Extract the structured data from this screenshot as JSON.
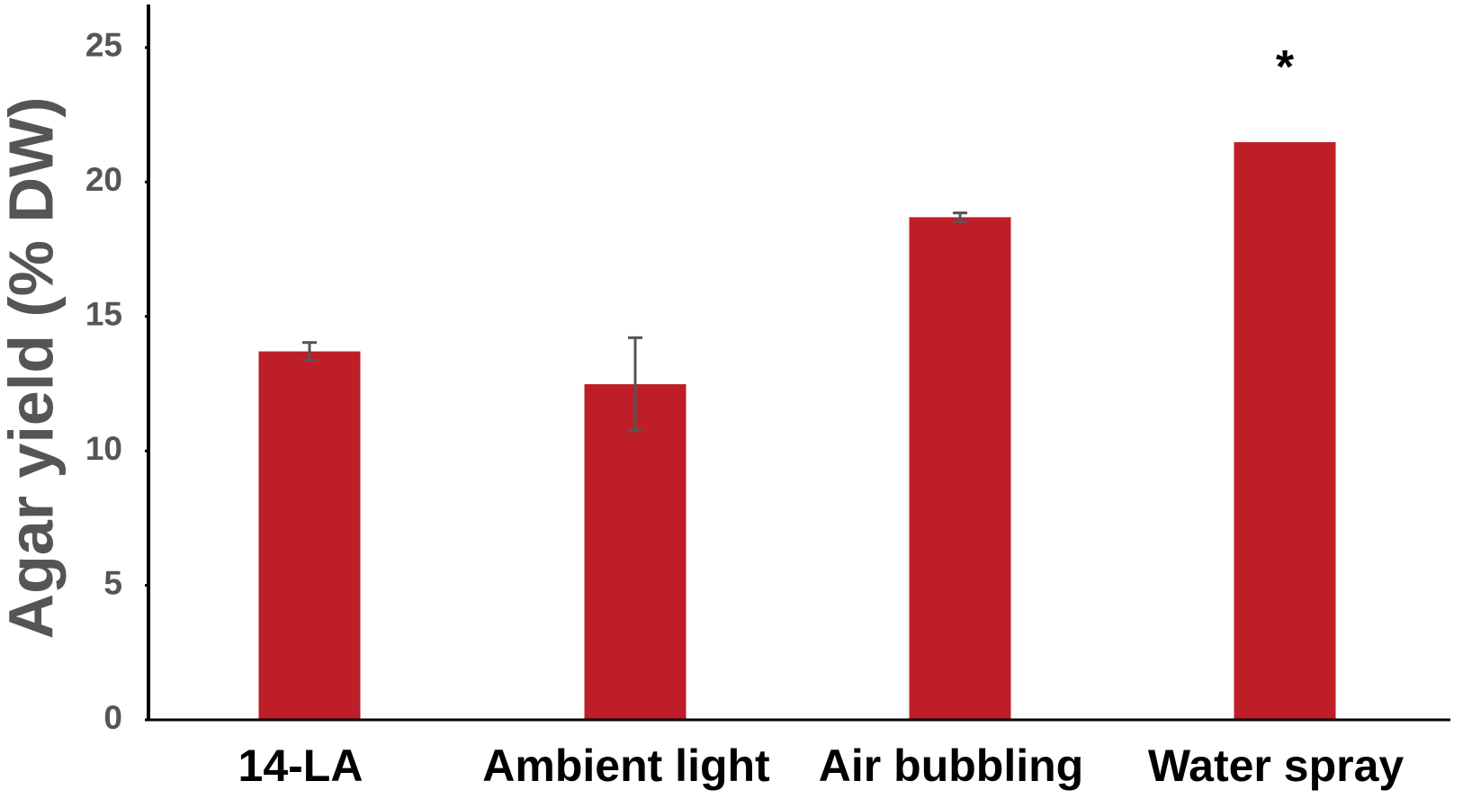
{
  "chart_data": {
    "type": "bar",
    "y_label": "Agar yield (% DW)",
    "categories": [
      "14-LA",
      "Ambient light",
      "Air bubbling",
      "Water spray"
    ],
    "values": [
      13.7,
      12.48,
      18.69,
      21.48
    ],
    "errors": [
      0.33,
      1.73,
      0.16,
      null
    ],
    "color": "#be1e28",
    "annotation": {
      "text": "*",
      "category_index": 3
    },
    "ylim": [
      0,
      26.6
    ],
    "yticks": [
      0,
      5,
      10,
      15,
      20,
      25
    ],
    "grid": false
  }
}
